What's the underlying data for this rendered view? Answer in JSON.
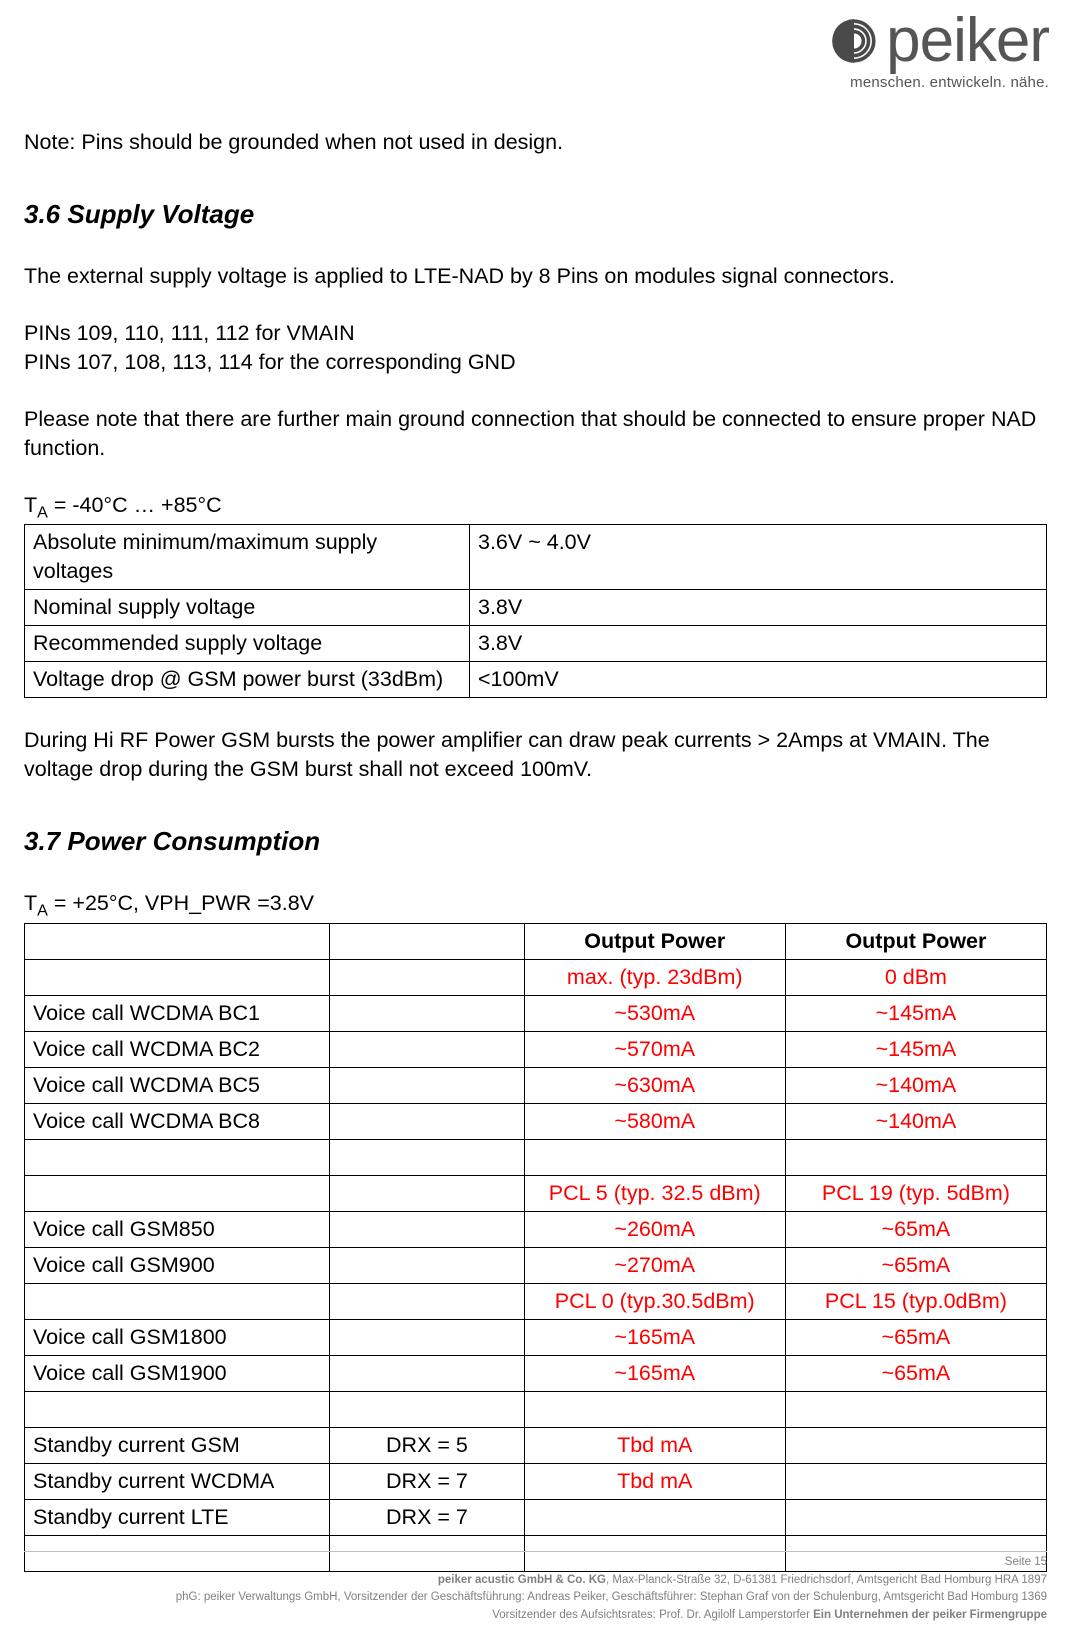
{
  "logo": {
    "word": "peiker",
    "tagline": "menschen. entwickeln. nähe.",
    "bullet_color": "#4a4a4a"
  },
  "note": "Note:  Pins should be grounded when not used in design.",
  "section36": {
    "title": "3.6 Supply Voltage",
    "intro": "The external supply voltage is applied to LTE-NAD by 8 Pins on modules signal connectors.",
    "pins_vmain": "PINs 109, 110, 111, 112 for VMAIN",
    "pins_gnd": "PINs 107, 108, 113, 114 for the corresponding GND",
    "ground_note": "Please note that there are further main ground connection that should be connected to ensure proper NAD function.",
    "temp_prefix": "T",
    "temp_sub": "A",
    "temp_suffix": " = -40°C … +85°C",
    "voltage_rows": [
      [
        "Absolute minimum/maximum supply voltages",
        "3.6V ~ 4.0V"
      ],
      [
        "Nominal supply voltage",
        "3.8V"
      ],
      [
        "Recommended supply voltage",
        "3.8V"
      ],
      [
        "Voltage drop @ GSM power burst (33dBm)",
        "<100mV"
      ]
    ],
    "burst_note": "During Hi RF Power GSM bursts the power amplifier can draw peak currents > 2Amps at VMAIN. The voltage drop during the GSM burst shall not exceed 100mV."
  },
  "section37": {
    "title": "3.7 Power Consumption",
    "cond_prefix": "T",
    "cond_sub": "A",
    "cond_suffix": " = +25°C, VPH_PWR =3.8V",
    "header": [
      "",
      "",
      "Output Power",
      "Output Power"
    ],
    "rows": [
      {
        "c0": "",
        "c1": "",
        "c2": "max. (typ. 23dBm)",
        "c3": "0 dBm",
        "c2_red": true,
        "c3_red": true,
        "c2_center": true,
        "c3_center": true
      },
      {
        "c0": "Voice call WCDMA BC1",
        "c1": "",
        "c2": "~530mA",
        "c3": "~145mA",
        "c2_red": true,
        "c3_red": true,
        "c2_center": true,
        "c3_center": true
      },
      {
        "c0": "Voice call WCDMA BC2",
        "c1": "",
        "c2": "~570mA",
        "c3": "~145mA",
        "c2_red": true,
        "c3_red": true,
        "c2_center": true,
        "c3_center": true
      },
      {
        "c0": "Voice call WCDMA BC5",
        "c1": "",
        "c2": "~630mA",
        "c3": "~140mA",
        "c2_red": true,
        "c3_red": true,
        "c2_center": true,
        "c3_center": true
      },
      {
        "c0": "Voice call WCDMA BC8",
        "c1": "",
        "c2": "~580mA",
        "c3": "~140mA",
        "c2_red": true,
        "c3_red": true,
        "c2_center": true,
        "c3_center": true
      },
      {
        "c0": "",
        "c1": "",
        "c2": "",
        "c3": ""
      },
      {
        "c0": "",
        "c1": "",
        "c2": "PCL 5 (typ. 32.5 dBm)",
        "c3": "PCL 19 (typ. 5dBm)",
        "c2_red": true,
        "c3_red": true,
        "c2_center": true,
        "c3_center": true
      },
      {
        "c0": "Voice call GSM850",
        "c1": "",
        "c2": "~260mA",
        "c3": "~65mA",
        "c2_red": true,
        "c3_red": true,
        "c2_center": true,
        "c3_center": true
      },
      {
        "c0": "Voice call GSM900",
        "c1": "",
        "c2": "~270mA",
        "c3": "~65mA",
        "c2_red": true,
        "c3_red": true,
        "c2_center": true,
        "c3_center": true
      },
      {
        "c0": "",
        "c1": "",
        "c2": "PCL 0 (typ.30.5dBm)",
        "c3": "PCL 15 (typ.0dBm)",
        "c2_red": true,
        "c3_red": true,
        "c2_center": true,
        "c3_center": true
      },
      {
        "c0": "Voice call GSM1800",
        "c1": "",
        "c2": "~165mA",
        "c3": "~65mA",
        "c2_red": true,
        "c3_red": true,
        "c2_center": true,
        "c3_center": true
      },
      {
        "c0": "Voice call GSM1900",
        "c1": "",
        "c2": "~165mA",
        "c3": "~65mA",
        "c2_red": true,
        "c3_red": true,
        "c2_center": true,
        "c3_center": true
      },
      {
        "c0": "",
        "c1": "",
        "c2": "",
        "c3": ""
      },
      {
        "c0": "Standby current GSM",
        "c1": "DRX = 5",
        "c1_center": true,
        "c2": "Tbd mA",
        "c3": "",
        "c2_red": true,
        "c2_center": true
      },
      {
        "c0": "Standby current WCDMA",
        "c1": "DRX = 7",
        "c1_center": true,
        "c2": "Tbd mA",
        "c3": "",
        "c2_red": true,
        "c2_center": true
      },
      {
        "c0": "Standby current LTE",
        "c1": "DRX = 7",
        "c1_center": true,
        "c2": "",
        "c3": ""
      },
      {
        "c0": "",
        "c1": "",
        "c2": "",
        "c3": ""
      }
    ]
  },
  "footer": {
    "page": "Seite 15",
    "line1_bold": "peiker acustic GmbH & Co. KG",
    "line1_rest": ", Max-Planck-Straße 32, D-61381 Friedrichsdorf, Amtsgericht Bad Homburg HRA 1897",
    "line2": "phG: peiker Verwaltungs GmbH, Vorsitzender der Geschäftsführung: Andreas Peiker, Geschäftsführer: Stephan Graf von der Schulenburg, Amtsgericht Bad Homburg 1369",
    "line3a": "Vorsitzender des Aufsichtsrates: Prof. Dr. Agilolf Lamperstorfer  ",
    "line3b": "Ein Unternehmen der peiker Firmengruppe"
  }
}
